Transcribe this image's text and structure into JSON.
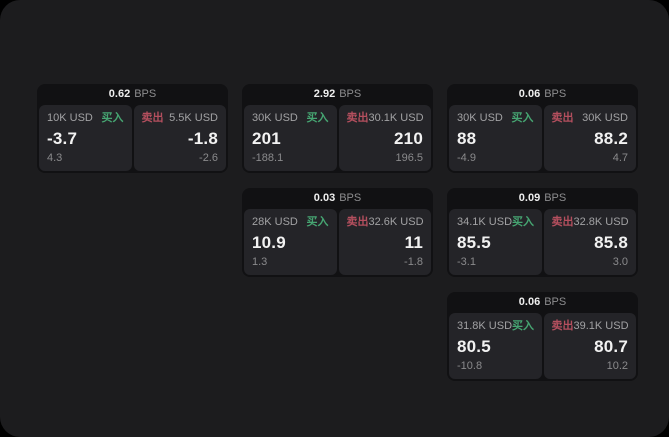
{
  "labels": {
    "bps_unit": "BPS",
    "buy": "买入",
    "sell": "卖出"
  },
  "colors": {
    "window_background": "#1c1c1e",
    "card_background": "#111113",
    "panel_background": "#242428",
    "buy_green": "#46a572",
    "sell_red": "#b44f5e",
    "value_text": "#f2f2f2",
    "muted_text": "#8a8a8c"
  },
  "cards": [
    {
      "row": 1,
      "col": 1,
      "bps": "0.62",
      "buy": {
        "amount": "10K USD",
        "value": "-3.7",
        "delta": "4.3"
      },
      "sell": {
        "amount": "5.5K USD",
        "value": "-1.8",
        "delta": "-2.6"
      }
    },
    {
      "row": 1,
      "col": 2,
      "bps": "2.92",
      "buy": {
        "amount": "30K USD",
        "value": "201",
        "delta": "-188.1"
      },
      "sell": {
        "amount": "30.1K USD",
        "value": "210",
        "delta": "196.5"
      }
    },
    {
      "row": 1,
      "col": 3,
      "bps": "0.06",
      "buy": {
        "amount": "30K USD",
        "value": "88",
        "delta": "-4.9"
      },
      "sell": {
        "amount": "30K USD",
        "value": "88.2",
        "delta": "4.7"
      }
    },
    {
      "row": 2,
      "col": 2,
      "bps": "0.03",
      "buy": {
        "amount": "28K USD",
        "value": "10.9",
        "delta": "1.3"
      },
      "sell": {
        "amount": "32.6K USD",
        "value": "11",
        "delta": "-1.8"
      }
    },
    {
      "row": 2,
      "col": 3,
      "bps": "0.09",
      "buy": {
        "amount": "34.1K USD",
        "value": "85.5",
        "delta": "-3.1"
      },
      "sell": {
        "amount": "32.8K USD",
        "value": "85.8",
        "delta": "3.0"
      }
    },
    {
      "row": 3,
      "col": 3,
      "bps": "0.06",
      "buy": {
        "amount": "31.8K USD",
        "value": "80.5",
        "delta": "-10.8"
      },
      "sell": {
        "amount": "39.1K USD",
        "value": "80.7",
        "delta": "10.2"
      }
    }
  ]
}
